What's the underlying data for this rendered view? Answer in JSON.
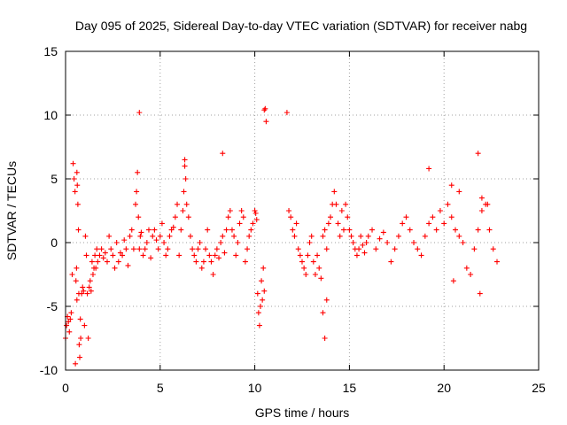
{
  "chart_data": {
    "type": "scatter",
    "title": "Day 095 of 2025, Sidereal Day-to-day VTEC variation (SDTVAR) for receiver nabg",
    "xlabel": "GPS time / hours",
    "ylabel": "SDTVAR / TECUs",
    "xlim": [
      0,
      25
    ],
    "ylim": [
      -10,
      15
    ],
    "xticks": [
      "0",
      "5",
      "10",
      "15",
      "20",
      "25"
    ],
    "yticks": [
      "-10",
      "-5",
      "0",
      "5",
      "10",
      "15"
    ],
    "grid": true,
    "marker": "plus",
    "color": "#ff0000",
    "series": [
      {
        "name": "nabg",
        "x": [
          0.0,
          0.05,
          0.1,
          0.15,
          0.2,
          0.25,
          0.3,
          0.35,
          0.4,
          0.45,
          0.5,
          0.52,
          0.55,
          0.58,
          0.6,
          0.62,
          0.65,
          0.68,
          0.7,
          0.72,
          0.75,
          0.78,
          0.8,
          0.85,
          0.9,
          0.95,
          1.0,
          1.05,
          1.1,
          1.15,
          1.2,
          1.25,
          1.3,
          1.35,
          1.4,
          1.45,
          1.5,
          1.55,
          1.6,
          1.65,
          1.7,
          1.8,
          1.9,
          2.0,
          2.1,
          2.2,
          2.3,
          2.4,
          2.5,
          2.6,
          2.7,
          2.8,
          2.9,
          3.0,
          3.1,
          3.2,
          3.3,
          3.4,
          3.5,
          3.6,
          3.7,
          3.75,
          3.8,
          3.85,
          3.9,
          3.95,
          4.0,
          4.1,
          4.2,
          4.3,
          4.4,
          4.5,
          4.6,
          4.7,
          4.8,
          4.9,
          5.0,
          5.1,
          5.2,
          5.3,
          5.4,
          5.5,
          5.6,
          5.7,
          5.8,
          5.9,
          6.0,
          6.1,
          6.2,
          6.25,
          6.3,
          6.35,
          6.4,
          6.5,
          6.6,
          6.7,
          6.8,
          6.9,
          7.0,
          7.1,
          7.2,
          7.3,
          7.4,
          7.5,
          7.6,
          7.7,
          7.8,
          7.9,
          8.0,
          8.1,
          8.2,
          8.3,
          8.4,
          8.5,
          8.6,
          8.7,
          8.8,
          8.9,
          9.0,
          9.1,
          9.2,
          9.3,
          9.4,
          9.5,
          9.6,
          9.7,
          9.8,
          9.9,
          10.0,
          10.05,
          10.1,
          10.15,
          10.2,
          10.25,
          10.3,
          10.35,
          10.4,
          10.45,
          10.5,
          10.55,
          10.6,
          11.7,
          11.8,
          11.9,
          12.0,
          12.1,
          12.2,
          12.3,
          12.4,
          12.5,
          12.6,
          12.7,
          12.8,
          12.9,
          13.0,
          13.1,
          13.2,
          13.3,
          13.4,
          13.5,
          13.6,
          13.7,
          13.8,
          13.9,
          14.0,
          14.1,
          14.2,
          14.3,
          14.4,
          14.5,
          14.6,
          14.7,
          14.8,
          14.9,
          15.0,
          15.1,
          15.2,
          15.3,
          15.4,
          15.5,
          15.6,
          15.7,
          15.8,
          15.9,
          16.0,
          16.2,
          16.4,
          16.6,
          16.8,
          17.0,
          17.2,
          17.4,
          17.6,
          17.8,
          18.0,
          18.2,
          18.4,
          18.6,
          18.8,
          19.0,
          19.2,
          19.4,
          19.6,
          19.8,
          20.0,
          20.2,
          20.4,
          20.6,
          20.8,
          21.0,
          21.2,
          21.4,
          21.6,
          21.8,
          22.0,
          22.2,
          22.4,
          22.6,
          22.8,
          19.2,
          20.4,
          20.8,
          21.8,
          22.0,
          22.3,
          8.3,
          13.6,
          13.8,
          20.5,
          21.9,
          0.6,
          3.9,
          6.3,
          10.5,
          13.7
        ],
        "y": [
          -7.5,
          -6.5,
          -5.8,
          -6.2,
          -7.0,
          -6.0,
          -5.5,
          -2.5,
          6.2,
          5.0,
          4.0,
          -9.5,
          -3.0,
          -2.0,
          5.5,
          4.5,
          3.0,
          1.0,
          -4.0,
          -8.0,
          -9.0,
          -6.0,
          -7.5,
          -4.0,
          -3.5,
          -3.8,
          -6.5,
          0.5,
          -1.0,
          -4.0,
          -7.5,
          -3.5,
          -3.0,
          -3.8,
          -1.5,
          -2.5,
          -2.0,
          -1.0,
          -2.0,
          -0.5,
          -1.5,
          -1.0,
          -0.5,
          -1.2,
          -0.8,
          -1.5,
          0.5,
          -0.5,
          -1.0,
          -2.0,
          0.0,
          -1.5,
          -0.8,
          -1.0,
          0.2,
          -0.5,
          -1.8,
          0.5,
          1.0,
          -0.5,
          3.0,
          4.0,
          5.5,
          2.0,
          -0.5,
          0.5,
          0.8,
          -1.0,
          -0.5,
          0.0,
          1.0,
          -1.2,
          0.5,
          1.0,
          0.2,
          -0.5,
          0.5,
          1.5,
          0.0,
          -1.0,
          -0.5,
          0.5,
          1.0,
          1.2,
          2.0,
          3.0,
          -1.0,
          1.0,
          2.5,
          4.0,
          6.0,
          5.0,
          3.0,
          2.0,
          0.5,
          -0.5,
          -1.0,
          -1.5,
          -0.5,
          0.0,
          -2.0,
          -1.5,
          -0.5,
          1.0,
          -1.0,
          -1.5,
          -2.5,
          -1.0,
          -0.5,
          -1.2,
          0.0,
          0.5,
          -0.8,
          1.0,
          2.0,
          2.5,
          1.0,
          0.5,
          -1.0,
          0.0,
          1.5,
          2.5,
          2.0,
          -1.5,
          -0.5,
          0.5,
          1.0,
          1.5,
          2.5,
          2.3,
          1.8,
          -4.0,
          -5.5,
          -6.5,
          -5.0,
          -3.0,
          -4.5,
          -2.0,
          -3.8,
          10.5,
          9.5,
          10.2,
          2.5,
          2.0,
          1.0,
          0.5,
          1.5,
          -0.5,
          -1.0,
          -1.5,
          -2.0,
          -2.5,
          -1.0,
          0.0,
          0.5,
          -1.5,
          -2.5,
          -1.0,
          -2.0,
          -2.8,
          0.5,
          1.0,
          -0.5,
          1.5,
          2.0,
          3.0,
          4.0,
          3.0,
          1.5,
          0.5,
          2.5,
          1.0,
          3.0,
          2.0,
          1.0,
          0.5,
          0.0,
          -0.5,
          -1.0,
          -0.5,
          0.5,
          -0.2,
          -0.8,
          0.0,
          0.5,
          1.0,
          -0.5,
          0.3,
          0.8,
          0.0,
          -1.5,
          -0.5,
          0.5,
          1.5,
          2.0,
          1.0,
          0.0,
          -0.5,
          -1.0,
          0.5,
          1.5,
          2.0,
          1.0,
          2.5,
          1.5,
          3.0,
          2.0,
          1.0,
          0.5,
          0.0,
          -2.0,
          -2.5,
          -0.5,
          1.0,
          2.5,
          3.0,
          1.0,
          -0.5,
          -1.5,
          5.8,
          4.5,
          4.0,
          7.0,
          3.5,
          3.0,
          7.0,
          -5.5,
          -4.5,
          -3.0,
          -4.0,
          -4.5,
          10.2,
          6.5,
          10.4,
          -7.5
        ]
      }
    ]
  }
}
